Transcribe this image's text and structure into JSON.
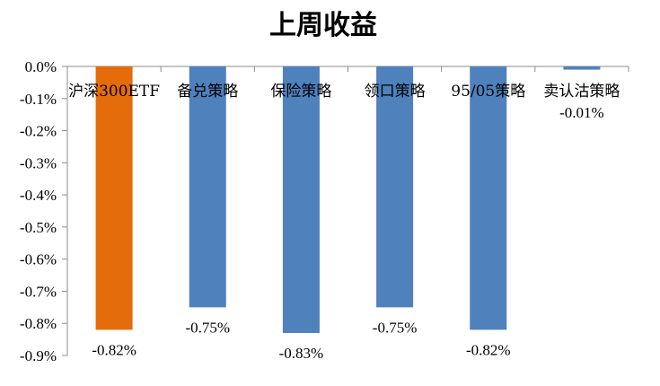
{
  "chart_data": {
    "type": "bar",
    "title": "上周收益",
    "categories": [
      "沪深300ETF",
      "备兑策略",
      "保险策略",
      "领口策略",
      "95/05策略",
      "卖认沽策略"
    ],
    "values": [
      -0.82,
      -0.75,
      -0.83,
      -0.75,
      -0.82,
      -0.01
    ],
    "value_labels": [
      "-0.82%",
      "-0.75%",
      "-0.83%",
      "-0.75%",
      "-0.82%",
      "-0.01%"
    ],
    "bar_colors": [
      "#E46C0A",
      "#4F81BD",
      "#4F81BD",
      "#4F81BD",
      "#4F81BD",
      "#4F81BD"
    ],
    "ylim": [
      -0.9,
      0.0
    ],
    "yticks": [
      0.0,
      -0.1,
      -0.2,
      -0.3,
      -0.4,
      -0.5,
      -0.6,
      -0.7,
      -0.8,
      -0.9
    ],
    "ytick_labels": [
      "0.0%",
      "-0.1%",
      "-0.2%",
      "-0.3%",
      "-0.4%",
      "-0.5%",
      "-0.6%",
      "-0.7%",
      "-0.8%",
      "-0.9%"
    ],
    "xlabel": "",
    "ylabel": "",
    "grid": false,
    "legend": "none"
  }
}
